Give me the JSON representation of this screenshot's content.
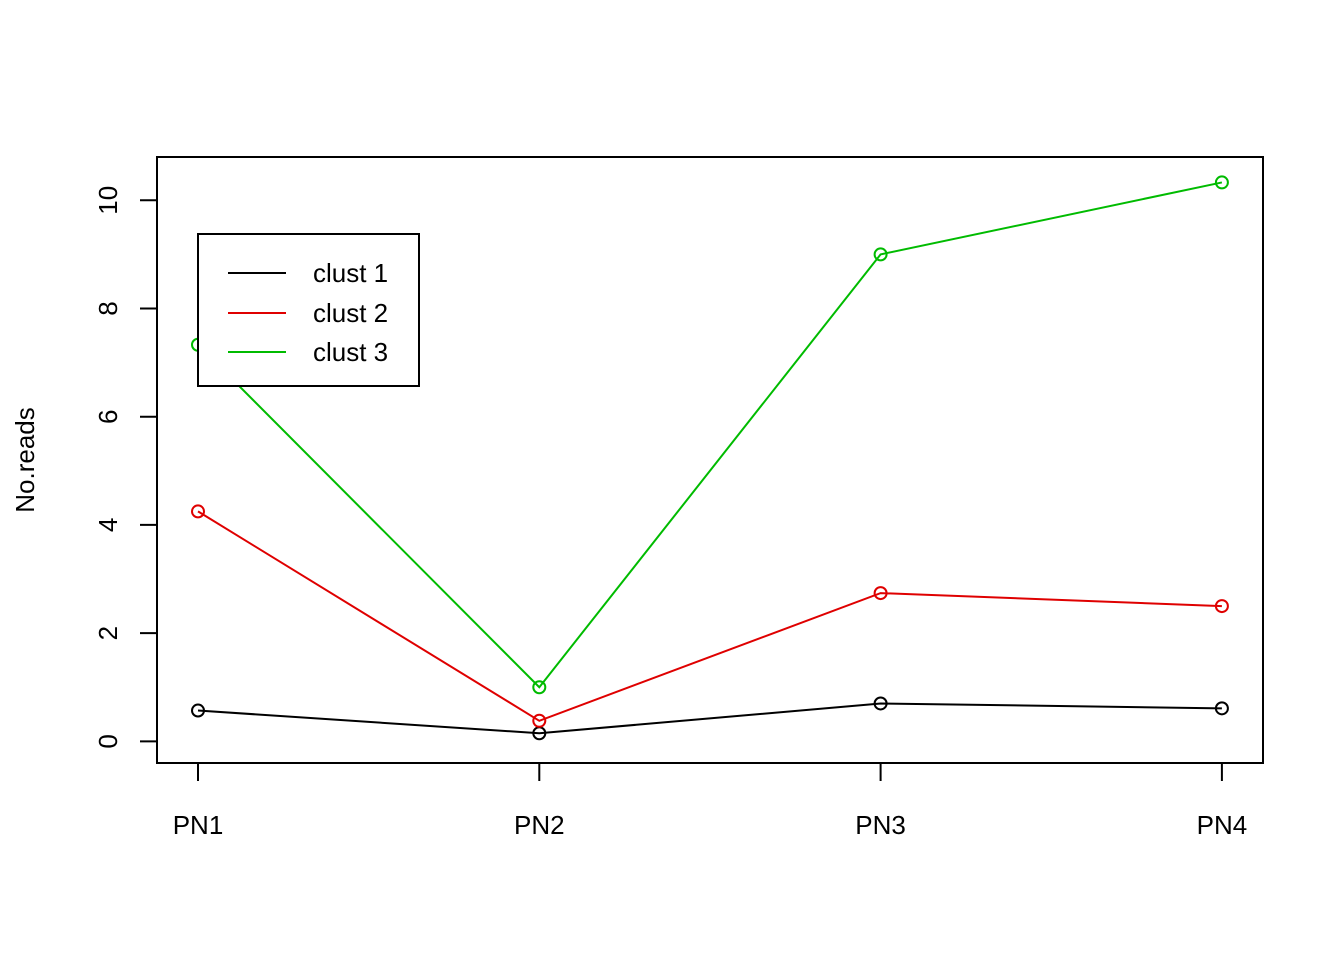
{
  "chart_data": {
    "type": "line",
    "title": "",
    "xlabel": "",
    "ylabel": "No.reads",
    "categories": [
      "PN1",
      "PN2",
      "PN3",
      "PN4"
    ],
    "ylim": [
      -0.4,
      10.8
    ],
    "yticks": [
      0,
      2,
      4,
      6,
      8,
      10
    ],
    "grid": false,
    "legend_position": "top-left",
    "markers": "open-circle",
    "series": [
      {
        "name": "clust 1",
        "color": "#000000",
        "values": [
          0.57,
          0.15,
          0.7,
          0.61
        ]
      },
      {
        "name": "clust 2",
        "color": "#DF0000",
        "values": [
          4.25,
          0.38,
          2.74,
          2.5
        ]
      },
      {
        "name": "clust 3",
        "color": "#00BB00",
        "values": [
          7.33,
          1.0,
          9.0,
          10.33
        ]
      }
    ]
  }
}
